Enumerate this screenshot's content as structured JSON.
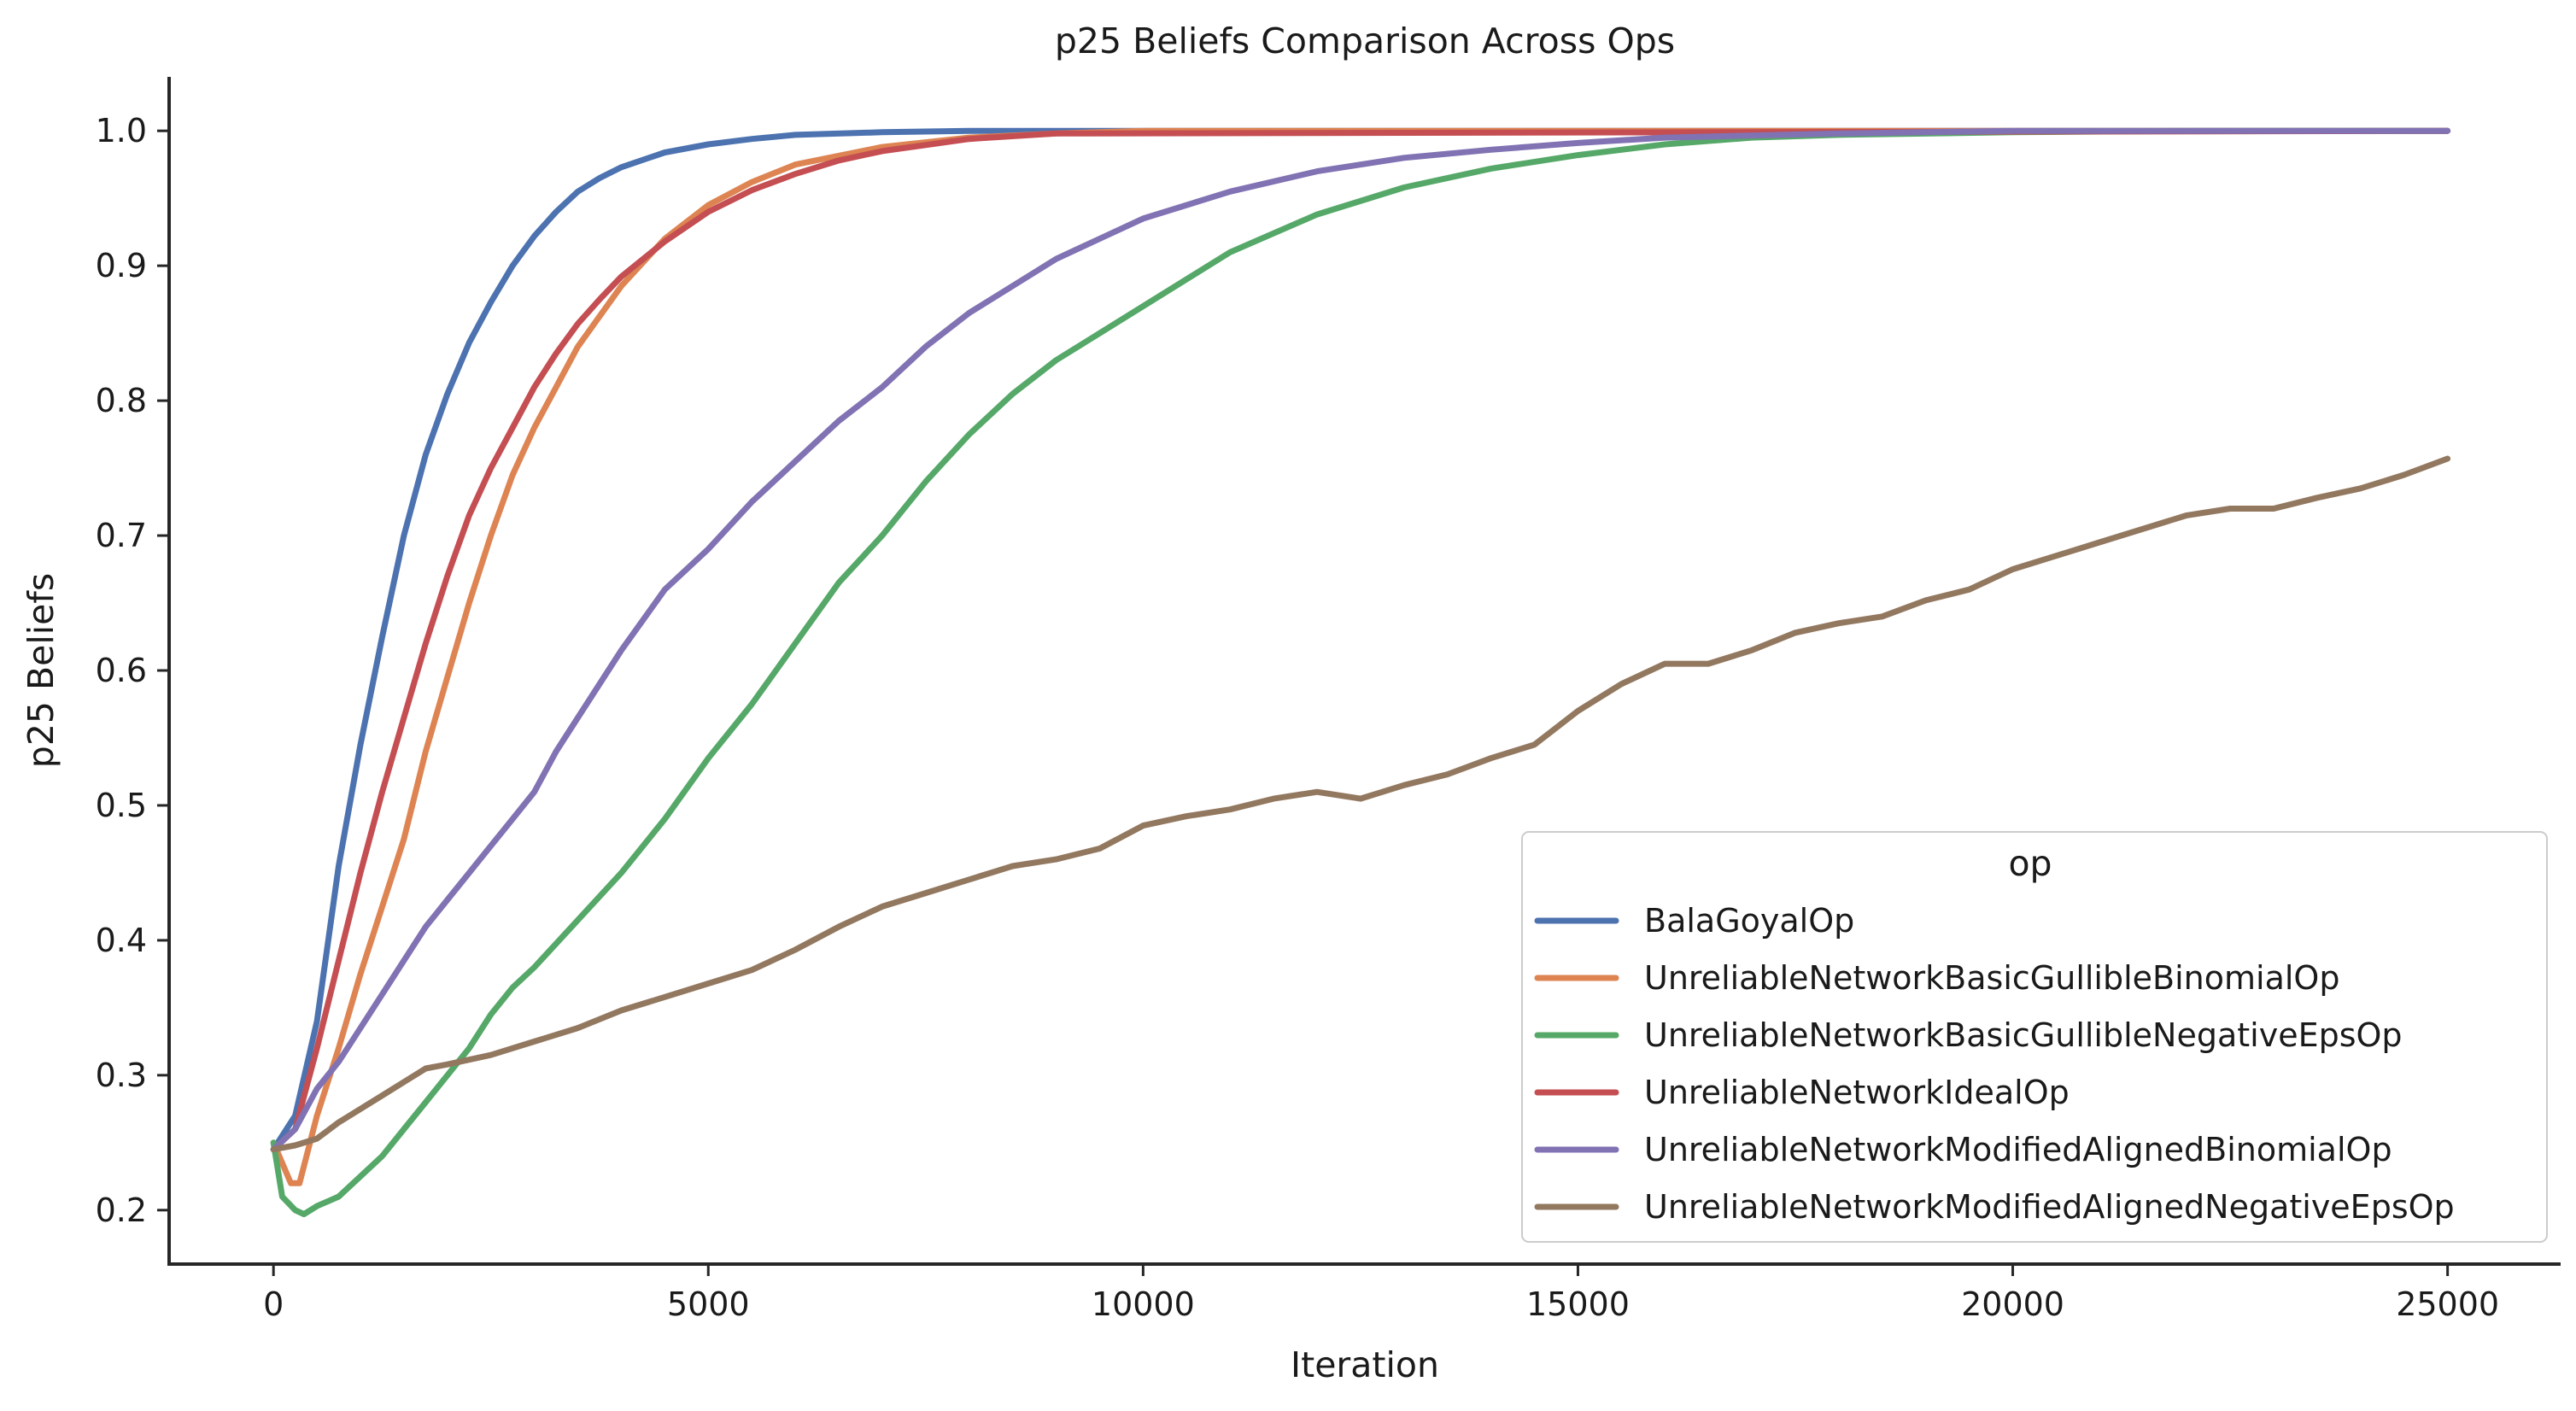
{
  "chart_data": {
    "type": "line",
    "title": "p25 Beliefs Comparison Across Ops",
    "xlabel": "Iteration",
    "ylabel": "p25 Beliefs",
    "xlim": [
      -1200,
      26300
    ],
    "ylim": [
      0.16,
      1.04
    ],
    "xticks": [
      0,
      5000,
      10000,
      15000,
      20000,
      25000
    ],
    "xtick_labels": [
      "0",
      "5000",
      "10000",
      "15000",
      "20000",
      "25000"
    ],
    "yticks": [
      0.2,
      0.3,
      0.4,
      0.5,
      0.6,
      0.7,
      0.8,
      0.9,
      1.0
    ],
    "ytick_labels": [
      "0.2",
      "0.3",
      "0.4",
      "0.5",
      "0.6",
      "0.7",
      "0.8",
      "0.9",
      "1.0"
    ],
    "grid": false,
    "legend": {
      "title": "op",
      "placement": "lower-right"
    },
    "series": [
      {
        "name": "BalaGoyalOp",
        "color": "#4c72b0",
        "x": [
          0,
          250,
          500,
          750,
          1000,
          1250,
          1500,
          1750,
          2000,
          2250,
          2500,
          2750,
          3000,
          3250,
          3500,
          3750,
          4000,
          4500,
          5000,
          5500,
          6000,
          7000,
          8000,
          10000,
          25000
        ],
        "y": [
          0.245,
          0.27,
          0.34,
          0.455,
          0.545,
          0.625,
          0.7,
          0.76,
          0.805,
          0.843,
          0.873,
          0.9,
          0.922,
          0.94,
          0.955,
          0.965,
          0.973,
          0.984,
          0.99,
          0.994,
          0.997,
          0.999,
          1.0,
          1.0,
          1.0
        ]
      },
      {
        "name": "UnreliableNetworkBasicGullibleBinomialOp",
        "color": "#dd8452",
        "x": [
          0,
          200,
          300,
          500,
          750,
          1000,
          1250,
          1500,
          1750,
          2000,
          2250,
          2500,
          2750,
          3000,
          3250,
          3500,
          4000,
          4500,
          5000,
          5500,
          6000,
          7000,
          8000,
          9000,
          10000,
          25000
        ],
        "y": [
          0.25,
          0.22,
          0.22,
          0.27,
          0.32,
          0.375,
          0.425,
          0.475,
          0.54,
          0.595,
          0.65,
          0.7,
          0.745,
          0.78,
          0.81,
          0.84,
          0.885,
          0.92,
          0.945,
          0.962,
          0.975,
          0.988,
          0.995,
          0.998,
          1.0,
          1.0
        ]
      },
      {
        "name": "UnreliableNetworkBasicGullibleNegativeEpsOp",
        "color": "#55a868",
        "x": [
          0,
          100,
          250,
          350,
          500,
          750,
          1000,
          1250,
          1500,
          1750,
          2000,
          2250,
          2500,
          2750,
          3000,
          3500,
          4000,
          4500,
          5000,
          5500,
          6000,
          6500,
          7000,
          7500,
          8000,
          8500,
          9000,
          9500,
          10000,
          11000,
          12000,
          13000,
          14000,
          15000,
          16000,
          17000,
          18000,
          20000,
          22000,
          25000
        ],
        "y": [
          0.25,
          0.21,
          0.2,
          0.197,
          0.203,
          0.21,
          0.225,
          0.24,
          0.26,
          0.28,
          0.3,
          0.32,
          0.345,
          0.365,
          0.38,
          0.415,
          0.45,
          0.49,
          0.535,
          0.575,
          0.62,
          0.665,
          0.7,
          0.74,
          0.775,
          0.805,
          0.83,
          0.85,
          0.87,
          0.91,
          0.938,
          0.958,
          0.972,
          0.982,
          0.99,
          0.995,
          0.997,
          0.999,
          1.0,
          1.0
        ]
      },
      {
        "name": "UnreliableNetworkIdealOp",
        "color": "#c44e52",
        "x": [
          0,
          250,
          500,
          750,
          1000,
          1250,
          1500,
          1750,
          2000,
          2250,
          2500,
          2750,
          3000,
          3250,
          3500,
          3750,
          4000,
          4500,
          5000,
          5500,
          6000,
          6500,
          7000,
          8000,
          9000,
          25000
        ],
        "y": [
          0.245,
          0.26,
          0.32,
          0.385,
          0.45,
          0.51,
          0.565,
          0.62,
          0.67,
          0.715,
          0.75,
          0.78,
          0.81,
          0.835,
          0.857,
          0.875,
          0.892,
          0.918,
          0.94,
          0.956,
          0.968,
          0.978,
          0.985,
          0.994,
          0.998,
          1.0
        ]
      },
      {
        "name": "UnreliableNetworkModifiedAlignedBinomialOp",
        "color": "#8172b3",
        "x": [
          0,
          250,
          500,
          750,
          1000,
          1250,
          1500,
          1750,
          2000,
          2250,
          2500,
          2750,
          3000,
          3250,
          3500,
          3750,
          4000,
          4500,
          5000,
          5500,
          6000,
          6500,
          7000,
          7500,
          8000,
          8500,
          9000,
          9500,
          10000,
          11000,
          12000,
          13000,
          14000,
          15000,
          16000,
          18000,
          20000,
          25000
        ],
        "y": [
          0.245,
          0.26,
          0.29,
          0.31,
          0.335,
          0.36,
          0.385,
          0.41,
          0.43,
          0.45,
          0.47,
          0.49,
          0.51,
          0.54,
          0.565,
          0.59,
          0.615,
          0.66,
          0.69,
          0.725,
          0.755,
          0.785,
          0.81,
          0.84,
          0.865,
          0.885,
          0.905,
          0.92,
          0.935,
          0.955,
          0.97,
          0.98,
          0.986,
          0.991,
          0.995,
          0.998,
          1.0,
          1.0
        ]
      },
      {
        "name": "UnreliableNetworkModifiedAlignedNegativeEpsOp",
        "color": "#937860",
        "x": [
          0,
          250,
          500,
          750,
          1000,
          1250,
          1500,
          1750,
          2000,
          2500,
          3000,
          3500,
          4000,
          4500,
          5000,
          5500,
          6000,
          6500,
          7000,
          7500,
          8000,
          8500,
          9000,
          9500,
          10000,
          10500,
          11000,
          11500,
          12000,
          12500,
          13000,
          13500,
          14000,
          14500,
          15000,
          15500,
          16000,
          16500,
          17000,
          17500,
          18000,
          18500,
          19000,
          19500,
          20000,
          20500,
          21000,
          21500,
          22000,
          22500,
          23000,
          23500,
          24000,
          24500,
          25000
        ],
        "y": [
          0.245,
          0.248,
          0.253,
          0.265,
          0.275,
          0.285,
          0.295,
          0.305,
          0.308,
          0.315,
          0.325,
          0.335,
          0.348,
          0.358,
          0.368,
          0.378,
          0.393,
          0.41,
          0.425,
          0.435,
          0.445,
          0.455,
          0.46,
          0.468,
          0.485,
          0.492,
          0.497,
          0.505,
          0.51,
          0.505,
          0.515,
          0.523,
          0.535,
          0.545,
          0.57,
          0.59,
          0.605,
          0.605,
          0.615,
          0.628,
          0.635,
          0.64,
          0.652,
          0.66,
          0.675,
          0.685,
          0.695,
          0.705,
          0.715,
          0.72,
          0.72,
          0.728,
          0.735,
          0.745,
          0.757
        ]
      }
    ]
  }
}
